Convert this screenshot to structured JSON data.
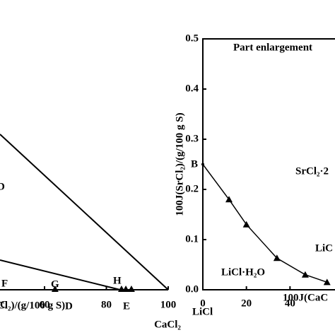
{
  "chart_data": [
    {
      "type": "scatter",
      "xlim": [
        0,
        100
      ],
      "xticks": [
        60,
        80,
        100
      ],
      "xlabel": "Cl₂)/(g/100 g S)",
      "x": [
        63.4,
        84.9,
        86.3,
        88.1
      ],
      "annotations": [
        "D",
        "F",
        "G",
        "H",
        "C",
        "D",
        "E",
        "CaCl₂"
      ],
      "color": "#000000"
    },
    {
      "type": "line",
      "title": "Part enlargement",
      "xlim": [
        0,
        60
      ],
      "xticks": [
        0,
        20,
        40
      ],
      "ylim": [
        0,
        0.5
      ],
      "yticks": [
        {
          "value": 0,
          "label": "0.0"
        },
        0.1,
        0.2,
        0.3,
        0.4,
        0.5
      ],
      "xlabel": "100J(CaC",
      "ylabel": "100J(SrCl₂)/(g/100 g S)",
      "x": [
        0,
        12,
        20,
        34,
        47,
        57
      ],
      "values": [
        0.25,
        0.18,
        0.13,
        0.063,
        0.03,
        0.015
      ],
      "annotations": [
        "B",
        "SrCl₂·2",
        "LiC",
        "LiCl·H₂O",
        "LiCl"
      ],
      "color": "#000000"
    }
  ]
}
